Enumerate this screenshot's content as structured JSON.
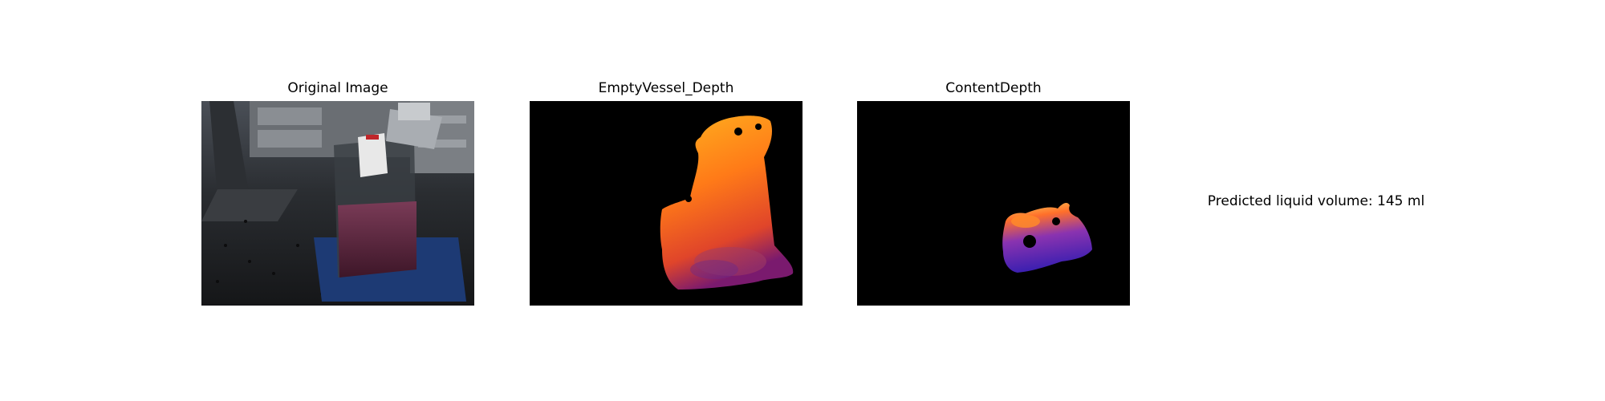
{
  "panels": [
    {
      "title": "Original Image"
    },
    {
      "title": "EmptyVessel_Depth"
    },
    {
      "title": "ContentDepth"
    }
  ],
  "result": {
    "text": "Predicted liquid volume: 145 ml"
  }
}
